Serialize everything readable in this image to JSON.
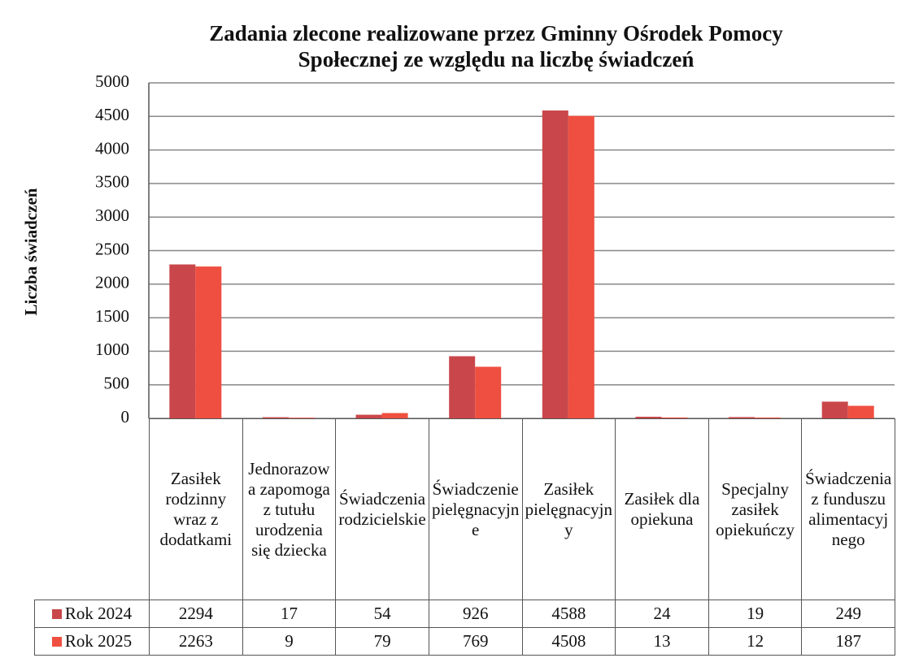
{
  "chart_data": {
    "type": "bar",
    "title": [
      "Zadania zlecone realizowane przez Gminny Ośrodek Pomocy",
      "Społecznej ze względu na liczbę świadczeń"
    ],
    "ylabel": "Liczba świadczeń",
    "categories": [
      "Zasiłek rodzinny wraz z dodatkami",
      "Jednorazowa zapomoga z tutułu urodzenia się dziecka",
      "Świadczenia rodzicielskie",
      "Świadczenie pielęgnacyjne",
      "Zasiłek pielęgnacyjny",
      "Zasiłek dla opiekuna",
      "Specjalny zasiłek opiekuńczy",
      "Świadczenia z funduszu alimentacyjnego"
    ],
    "series": [
      {
        "name": "Rok 2024",
        "color": "#c9474a",
        "values": [
          2294,
          17,
          54,
          926,
          4588,
          24,
          19,
          249
        ]
      },
      {
        "name": "Rok 2025",
        "color": "#ef4f40",
        "values": [
          2263,
          9,
          79,
          769,
          4508,
          13,
          12,
          187
        ]
      }
    ],
    "ylim": [
      0,
      5000
    ],
    "yticks": [
      0,
      500,
      1000,
      1500,
      2000,
      2500,
      3000,
      3500,
      4000,
      4500,
      5000
    ],
    "grid": true
  }
}
